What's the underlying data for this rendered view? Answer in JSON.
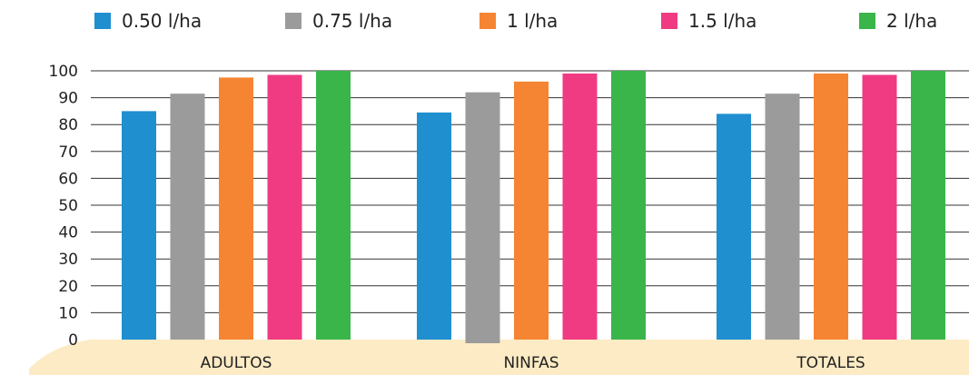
{
  "chart_data": {
    "type": "bar",
    "categories": [
      "ADULTOS",
      "NINFAS",
      "TOTALES"
    ],
    "series": [
      {
        "name": "0.50 l/ha",
        "color": "#1f8fd0",
        "values": [
          85,
          84.5,
          84
        ]
      },
      {
        "name": "0.75 l/ha",
        "color": "#9b9b9b",
        "values": [
          91.5,
          92,
          91.5
        ]
      },
      {
        "name": "1 l/ha",
        "color": "#f58532",
        "values": [
          97.5,
          96,
          99
        ]
      },
      {
        "name": "1.5 l/ha",
        "color": "#f03b82",
        "values": [
          98.5,
          99,
          98.5
        ]
      },
      {
        "name": "2 l/ha",
        "color": "#3ab54a",
        "values": [
          100,
          100,
          100
        ]
      }
    ],
    "yticks": [
      "0",
      "10",
      "20",
      "30",
      "40",
      "50",
      "60",
      "70",
      "80",
      "90",
      "100"
    ],
    "ylim": [
      0,
      100
    ],
    "grid": true,
    "legend_position": "top"
  }
}
